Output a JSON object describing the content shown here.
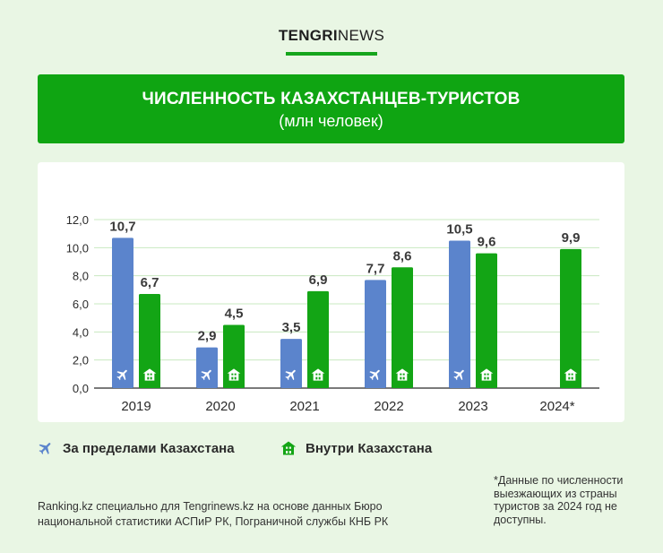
{
  "brand": {
    "part1": "TENGRI",
    "part2": "NEWS"
  },
  "header": {
    "title": "ЧИСЛЕННОСТЬ КАЗАХСТАНЦЕВ-ТУРИСТОВ",
    "subtitle": "(млн человек)"
  },
  "colors": {
    "abroad": "#5b84cc",
    "domestic": "#13a515",
    "accent": "#0fa512"
  },
  "legend": {
    "abroad": {
      "label": "За пределами Казахстана",
      "icon": "airplane-icon"
    },
    "domestic": {
      "label": "Внутри Казахстана",
      "icon": "house-icon"
    }
  },
  "source": "Ranking.kz специально для Tengrinews.kz на основе данных Бюро национальной статистики АСПиР РК, Пограничной службы КНБ РК",
  "footnote": "*Данные по численности выезжающих из страны туристов за 2024 год не доступны.",
  "chart_data": {
    "type": "bar",
    "categories": [
      "2019",
      "2020",
      "2021",
      "2022",
      "2023",
      "2024*"
    ],
    "series": [
      {
        "name": "За пределами Казахстана",
        "values": [
          10.7,
          2.9,
          3.5,
          7.7,
          10.5,
          null
        ],
        "labels": [
          "10,7",
          "2,9",
          "3,5",
          "7,7",
          "10,5",
          ""
        ]
      },
      {
        "name": "Внутри Казахстана",
        "values": [
          6.7,
          4.5,
          6.9,
          8.6,
          9.6,
          9.9
        ],
        "labels": [
          "6,7",
          "4,5",
          "6,9",
          "8,6",
          "9,6",
          "9,9"
        ]
      }
    ],
    "ylim": [
      0,
      12
    ],
    "yticks": [
      0,
      2,
      4,
      6,
      8,
      10,
      12
    ],
    "ytick_labels": [
      "0,0",
      "2,0",
      "4,0",
      "6,0",
      "8,0",
      "10,0",
      "12,0"
    ],
    "grid": true
  }
}
